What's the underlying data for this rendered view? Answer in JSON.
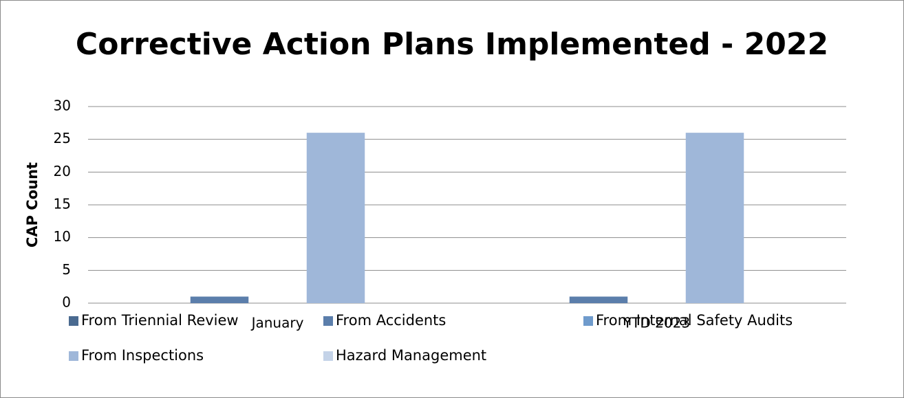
{
  "chart_data": {
    "type": "bar",
    "title": "Corrective Action Plans Implemented - 2022",
    "y_label": "CAP Count",
    "categories": [
      "January",
      "YTD 2023"
    ],
    "series": [
      {
        "name": "From Triennial Review",
        "color": "#4a6a90",
        "values": [
          0,
          0
        ]
      },
      {
        "name": "From Accidents",
        "color": "#5b7eab",
        "values": [
          1,
          1
        ]
      },
      {
        "name": "From Internal Safety Audits",
        "color": "#6f9bcc",
        "values": [
          0,
          0
        ]
      },
      {
        "name": "From Inspections",
        "color": "#9fb7d9",
        "values": [
          26,
          26
        ]
      },
      {
        "name": "Hazard Management",
        "color": "#c4d3e8",
        "values": [
          0,
          0
        ]
      }
    ],
    "ylim": [
      0,
      30
    ],
    "yticks": [
      0,
      5,
      10,
      15,
      20,
      25,
      30
    ],
    "grid": true,
    "legend": "bottom"
  }
}
